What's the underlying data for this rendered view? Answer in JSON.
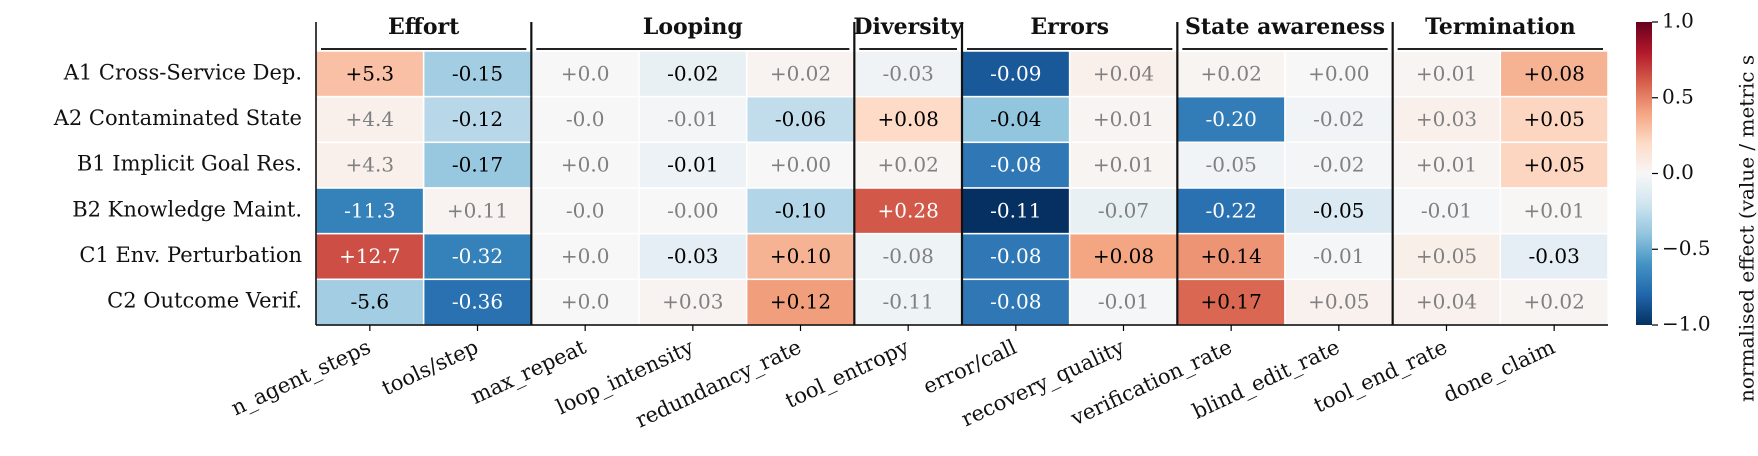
{
  "chart_data": {
    "type": "heatmap",
    "rows": [
      "A1 Cross-Service Dep.",
      "A2 Contaminated State",
      "B1 Implicit Goal Res.",
      "B2 Knowledge Maint.",
      "C1 Env. Perturbation",
      "C2 Outcome Verif."
    ],
    "columns": [
      "n_agent_steps",
      "tools/step",
      "max_repeat",
      "loop_intensity",
      "redundancy_rate",
      "tool_entropy",
      "error/call",
      "recovery_quality",
      "verification_rate",
      "blind_edit_rate",
      "tool_end_rate",
      "done_claim"
    ],
    "groups": [
      {
        "name": "Effort",
        "size": 2
      },
      {
        "name": "Looping",
        "size": 3
      },
      {
        "name": "Diversity",
        "size": 1
      },
      {
        "name": "Errors",
        "size": 2
      },
      {
        "name": "State awareness",
        "size": 2
      },
      {
        "name": "Termination",
        "size": 2
      }
    ],
    "values": [
      [
        5.3,
        -0.15,
        0.0,
        -0.02,
        0.02,
        -0.03,
        -0.09,
        0.04,
        0.02,
        0.0,
        0.01,
        0.08
      ],
      [
        4.4,
        -0.12,
        -0.0,
        -0.01,
        -0.06,
        0.08,
        -0.04,
        0.01,
        -0.2,
        -0.02,
        0.03,
        0.05
      ],
      [
        4.3,
        -0.17,
        0.0,
        -0.01,
        0.0,
        0.02,
        -0.08,
        0.01,
        -0.05,
        -0.02,
        0.01,
        0.05
      ],
      [
        -11.3,
        0.11,
        -0.0,
        -0.0,
        -0.1,
        0.28,
        -0.11,
        -0.07,
        -0.22,
        -0.05,
        -0.01,
        0.01
      ],
      [
        12.7,
        -0.32,
        0.0,
        -0.03,
        0.1,
        -0.08,
        -0.08,
        0.08,
        0.14,
        -0.01,
        0.05,
        -0.03
      ],
      [
        -5.6,
        -0.36,
        0.0,
        0.03,
        0.12,
        -0.11,
        -0.08,
        -0.01,
        0.17,
        0.05,
        0.04,
        0.02
      ]
    ],
    "value_labels": [
      [
        "+5.3",
        "-0.15",
        "+0.0",
        "-0.02",
        "+0.02",
        "-0.03",
        "-0.09",
        "+0.04",
        "+0.02",
        "+0.00",
        "+0.01",
        "+0.08"
      ],
      [
        "+4.4",
        "-0.12",
        "-0.0",
        "-0.01",
        "-0.06",
        "+0.08",
        "-0.04",
        "+0.01",
        "-0.20",
        "-0.02",
        "+0.03",
        "+0.05"
      ],
      [
        "+4.3",
        "-0.17",
        "+0.0",
        "-0.01",
        "+0.00",
        "+0.02",
        "-0.08",
        "+0.01",
        "-0.05",
        "-0.02",
        "+0.01",
        "+0.05"
      ],
      [
        "-11.3",
        "+0.11",
        "-0.0",
        "-0.00",
        "-0.10",
        "+0.28",
        "-0.11",
        "-0.07",
        "-0.22",
        "-0.05",
        "-0.01",
        "+0.01"
      ],
      [
        "+12.7",
        "-0.32",
        "+0.0",
        "-0.03",
        "+0.10",
        "-0.08",
        "-0.08",
        "+0.08",
        "+0.14",
        "-0.01",
        "+0.05",
        "-0.03"
      ],
      [
        "-5.6",
        "-0.36",
        "+0.0",
        "+0.03",
        "+0.12",
        "-0.11",
        "-0.08",
        "-0.01",
        "+0.17",
        "+0.05",
        "+0.04",
        "+0.02"
      ]
    ],
    "normalised": [
      [
        0.3,
        -0.35,
        0.0,
        -0.08,
        0.03,
        -0.04,
        -0.85,
        0.05,
        0.02,
        0.0,
        0.02,
        0.35
      ],
      [
        0.05,
        -0.28,
        0.0,
        -0.02,
        -0.25,
        0.2,
        -0.4,
        0.02,
        -0.7,
        -0.03,
        0.05,
        0.22
      ],
      [
        0.05,
        -0.38,
        0.0,
        -0.06,
        0.0,
        0.02,
        -0.72,
        0.02,
        -0.03,
        -0.02,
        0.02,
        0.22
      ],
      [
        -0.68,
        0.03,
        0.0,
        0.0,
        -0.3,
        0.62,
        -1.0,
        -0.08,
        -0.75,
        -0.15,
        -0.01,
        0.01
      ],
      [
        0.65,
        -0.68,
        0.0,
        -0.1,
        0.35,
        -0.05,
        -0.72,
        0.4,
        0.45,
        -0.01,
        0.06,
        -0.1
      ],
      [
        -0.35,
        -0.75,
        0.0,
        0.03,
        0.42,
        -0.05,
        -0.72,
        -0.01,
        0.58,
        0.04,
        0.04,
        0.02
      ]
    ],
    "significant": [
      [
        true,
        true,
        false,
        true,
        false,
        false,
        true,
        false,
        false,
        false,
        false,
        true
      ],
      [
        false,
        true,
        false,
        false,
        true,
        true,
        true,
        false,
        true,
        false,
        false,
        true
      ],
      [
        false,
        true,
        false,
        true,
        false,
        false,
        true,
        false,
        false,
        false,
        false,
        true
      ],
      [
        true,
        false,
        false,
        false,
        true,
        true,
        true,
        false,
        true,
        true,
        false,
        false
      ],
      [
        true,
        true,
        false,
        true,
        true,
        false,
        true,
        true,
        true,
        false,
        false,
        true
      ],
      [
        true,
        true,
        false,
        false,
        true,
        false,
        true,
        false,
        true,
        false,
        false,
        false
      ]
    ],
    "colormap": [
      "#053061",
      "#2166ac",
      "#4393c3",
      "#92c5de",
      "#d1e5f0",
      "#f7f7f7",
      "#fddbc7",
      "#f4a582",
      "#d6604d",
      "#b2182b",
      "#67001f"
    ],
    "clim": [
      -1.0,
      1.0
    ],
    "cticks": [
      {
        "value": 1.0,
        "label": "1.0"
      },
      {
        "value": 0.5,
        "label": "0.5"
      },
      {
        "value": 0.0,
        "label": "0.0"
      },
      {
        "value": -0.5,
        "label": "−0.5"
      },
      {
        "value": -1.0,
        "label": "−1.0"
      }
    ],
    "colorbar_label": "normalised effect (value / metric s"
  }
}
